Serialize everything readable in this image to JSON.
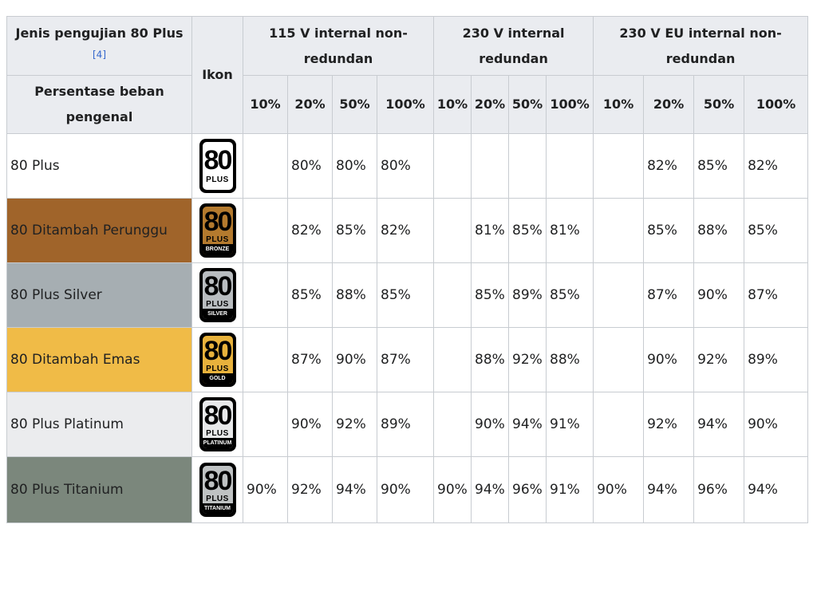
{
  "header": {
    "test_type_label": "Jenis pengujian 80 Plus",
    "reference": "[4]",
    "load_label": "Persentase beban pengenal",
    "icon_label": "Ikon",
    "groups": [
      "115 V internal non-redundan",
      "230 V internal redundan",
      "230 V EU internal non-redundan"
    ],
    "percentages": [
      "10%",
      "20%",
      "50%",
      "100%"
    ]
  },
  "rows": [
    {
      "name": "80 Plus",
      "badge": {
        "num": "80",
        "plus": "PLUS",
        "tier": "",
        "fill": "#ffffff"
      },
      "values": [
        "",
        "80%",
        "80%",
        "80%",
        "",
        "",
        "",
        "",
        "",
        "82%",
        "85%",
        "82%"
      ]
    },
    {
      "name": "80 Ditambah Perunggu",
      "badge": {
        "num": "80",
        "plus": "PLUS",
        "tier": "BRONZE",
        "fill": "#b47a2e"
      },
      "values": [
        "",
        "82%",
        "85%",
        "82%",
        "",
        "81%",
        "85%",
        "81%",
        "",
        "85%",
        "88%",
        "85%"
      ]
    },
    {
      "name": "80 Plus Silver",
      "badge": {
        "num": "80",
        "plus": "PLUS",
        "tier": "SILVER",
        "fill": "#b9bdc0"
      },
      "values": [
        "",
        "85%",
        "88%",
        "85%",
        "",
        "85%",
        "89%",
        "85%",
        "",
        "87%",
        "90%",
        "87%"
      ]
    },
    {
      "name": "80 Ditambah Emas",
      "badge": {
        "num": "80",
        "plus": "PLUS",
        "tier": "GOLD",
        "fill": "#e8b23c"
      },
      "values": [
        "",
        "87%",
        "90%",
        "87%",
        "",
        "88%",
        "92%",
        "88%",
        "",
        "90%",
        "92%",
        "89%"
      ]
    },
    {
      "name": "80 Plus Platinum",
      "badge": {
        "num": "80",
        "plus": "PLUS",
        "tier": "PLATINUM",
        "fill": "#e8e9ea"
      },
      "values": [
        "",
        "90%",
        "92%",
        "89%",
        "",
        "90%",
        "94%",
        "91%",
        "",
        "92%",
        "94%",
        "90%"
      ]
    },
    {
      "name": "80 Plus Titanium",
      "badge": {
        "num": "80",
        "plus": "PLUS",
        "tier": "TITANIUM",
        "fill": "#bfc2c3"
      },
      "values": [
        "90%",
        "92%",
        "94%",
        "90%",
        "90%",
        "94%",
        "96%",
        "91%",
        "90%",
        "94%",
        "96%",
        "94%"
      ]
    }
  ]
}
